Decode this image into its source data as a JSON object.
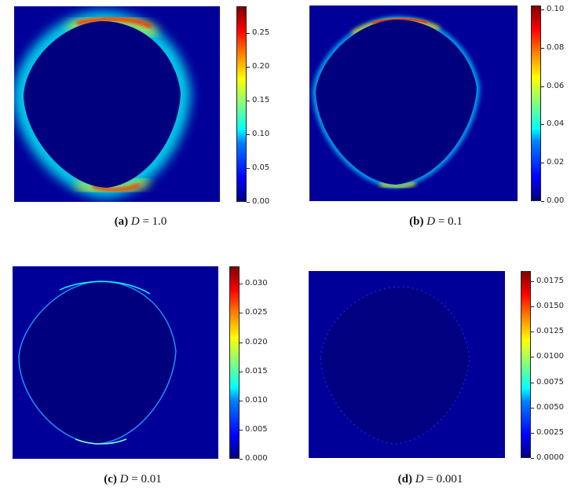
{
  "panels": [
    {
      "id": "a",
      "caption": {
        "tag": "(a)",
        "var": "D",
        "eq": "= 1.0"
      },
      "colorbar": {
        "ticks": [
          "0.00",
          "0.05",
          "0.10",
          "0.15",
          "0.20",
          "0.25"
        ],
        "max": 0.29
      }
    },
    {
      "id": "b",
      "caption": {
        "tag": "(b)",
        "var": "D",
        "eq": "= 0.1"
      },
      "colorbar": {
        "ticks": [
          "0.00",
          "0.02",
          "0.04",
          "0.06",
          "0.08",
          "0.10"
        ],
        "max": 0.102
      }
    },
    {
      "id": "c",
      "caption": {
        "tag": "(c)",
        "var": "D",
        "eq": "= 0.01"
      },
      "colorbar": {
        "ticks": [
          "0.000",
          "0.005",
          "0.010",
          "0.015",
          "0.020",
          "0.025",
          "0.030"
        ],
        "max": 0.033
      }
    },
    {
      "id": "d",
      "caption": {
        "tag": "(d)",
        "var": "D",
        "eq": "= 0.001"
      },
      "colorbar": {
        "ticks": [
          "0.0000",
          "0.0025",
          "0.0050",
          "0.0075",
          "0.0100",
          "0.0125",
          "0.0150",
          "0.0175"
        ],
        "max": 0.0185
      }
    }
  ],
  "colors": {
    "background_field": "#00007f",
    "low": "#0000ff",
    "high": "#ff0000"
  }
}
